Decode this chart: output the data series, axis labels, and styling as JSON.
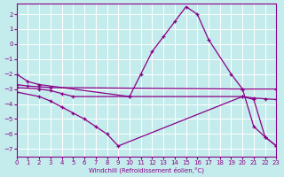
{
  "xlabel": "Windchill (Refroidissement éolien,°C)",
  "xlim": [
    0,
    23
  ],
  "ylim": [
    -7.5,
    2.7
  ],
  "yticks": [
    2,
    1,
    0,
    -1,
    -2,
    -3,
    -4,
    -5,
    -6,
    -7
  ],
  "xticks": [
    0,
    1,
    2,
    3,
    4,
    5,
    6,
    7,
    8,
    9,
    10,
    11,
    12,
    13,
    14,
    15,
    16,
    17,
    18,
    19,
    20,
    21,
    22,
    23
  ],
  "bg_color": "#c5ecec",
  "line_color": "#880088",
  "grid_color": "#ffffff",
  "line1_x": [
    0,
    1,
    2,
    10,
    11,
    12,
    13,
    14,
    15,
    16,
    17,
    19,
    20,
    21,
    22,
    23
  ],
  "line1_y": [
    -2.0,
    -2.5,
    -2.7,
    -3.5,
    -2.0,
    -0.5,
    0.5,
    1.5,
    2.5,
    2.0,
    0.3,
    -2.0,
    -3.0,
    -5.5,
    -6.2,
    -6.8
  ],
  "line2_x": [
    0,
    1,
    2,
    3,
    20,
    23
  ],
  "line2_y": [
    -2.7,
    -2.8,
    -2.85,
    -2.9,
    -3.0,
    -3.0
  ],
  "line3_x": [
    0,
    2,
    3,
    4,
    5,
    6,
    7,
    8,
    9,
    20,
    21,
    22,
    23
  ],
  "line3_y": [
    -3.2,
    -3.5,
    -3.8,
    -4.2,
    -4.6,
    -5.0,
    -5.5,
    -6.0,
    -6.8,
    -3.5,
    -3.7,
    -6.2,
    -6.8
  ],
  "line4_x": [
    0,
    2,
    3,
    4,
    5,
    10,
    20,
    21,
    22,
    23
  ],
  "line4_y": [
    -2.9,
    -3.0,
    -3.1,
    -3.3,
    -3.5,
    -3.5,
    -3.5,
    -3.6,
    -3.65,
    -3.7
  ]
}
